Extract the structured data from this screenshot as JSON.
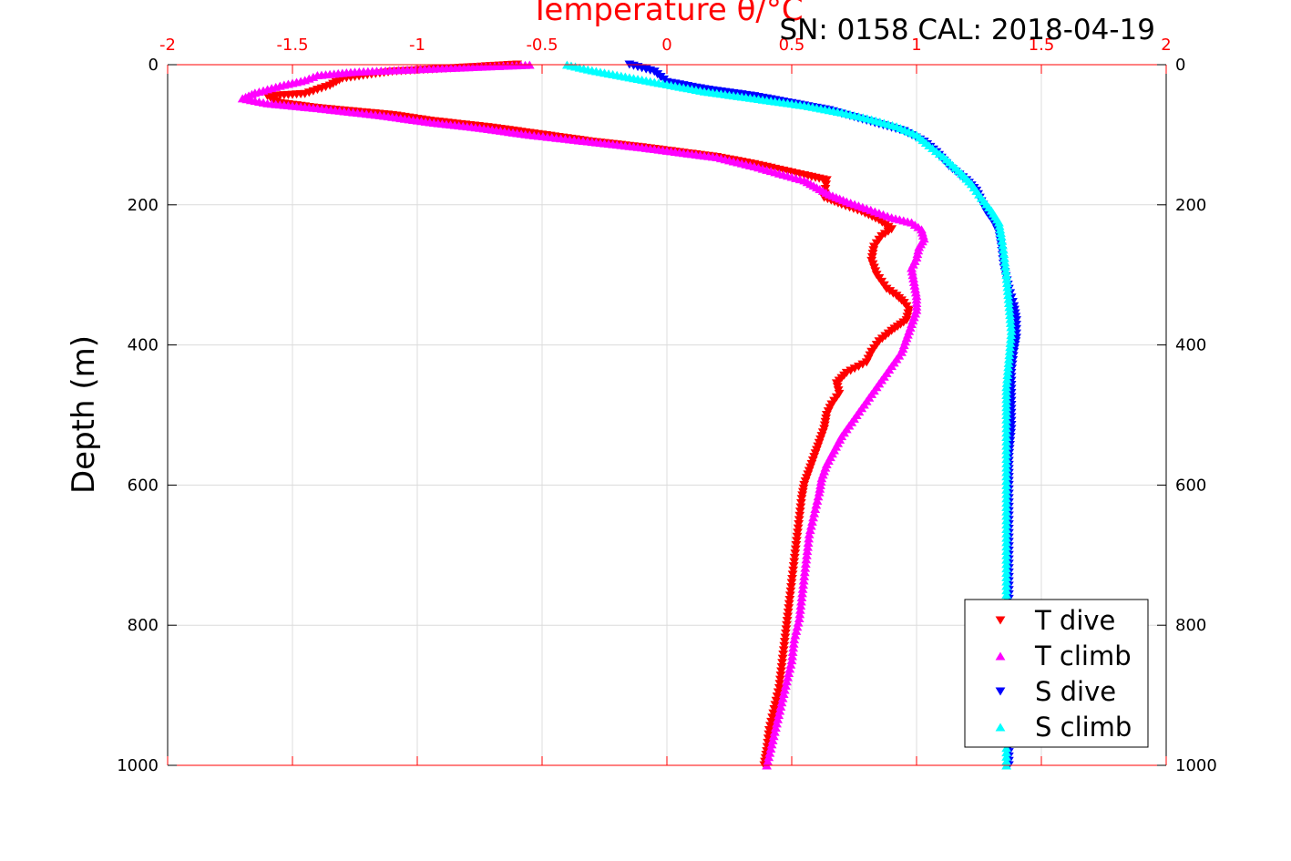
{
  "header": {
    "serial_cal": "SN: 0158  CAL: 2018-04-19"
  },
  "colors": {
    "t_axis": "#ff0000",
    "t_dive": "#ff0000",
    "t_climb": "#ff00ff",
    "s_dive": "#0000ff",
    "s_climb": "#00ffff"
  },
  "chart_data": {
    "type": "scatter",
    "title": "Temperature θ/°C",
    "xlabel": "Temperature θ/°C",
    "ylabel": "Depth (m)",
    "xlim": [
      -2,
      2
    ],
    "ylim": [
      0,
      1000
    ],
    "y_reversed": true,
    "grid": true,
    "xticks": [
      "-2",
      "-1.5",
      "-1",
      "-0.5",
      "0",
      "0.5",
      "1",
      "1.5",
      "2"
    ],
    "yticks": [
      "0",
      "200",
      "400",
      "600",
      "800",
      "1000"
    ],
    "legend_position": "bottom-right",
    "series": [
      {
        "name": "T dive",
        "marker": "triangle-down",
        "points": [
          [
            -0.6,
            0
          ],
          [
            -1.1,
            10
          ],
          [
            -1.3,
            20
          ],
          [
            -1.35,
            30
          ],
          [
            -1.45,
            42
          ],
          [
            -1.6,
            45
          ],
          [
            -1.55,
            55
          ],
          [
            -1.4,
            62
          ],
          [
            -1.1,
            72
          ],
          [
            -0.95,
            80
          ],
          [
            -0.7,
            90
          ],
          [
            -0.5,
            100
          ],
          [
            -0.3,
            110
          ],
          [
            -0.1,
            118
          ],
          [
            0.05,
            125
          ],
          [
            0.2,
            132
          ],
          [
            0.35,
            142
          ],
          [
            0.45,
            150
          ],
          [
            0.55,
            158
          ],
          [
            0.64,
            165
          ],
          [
            0.63,
            190
          ],
          [
            0.7,
            200
          ],
          [
            0.78,
            210
          ],
          [
            0.85,
            222
          ],
          [
            0.9,
            235
          ],
          [
            0.86,
            245
          ],
          [
            0.83,
            260
          ],
          [
            0.82,
            280
          ],
          [
            0.84,
            300
          ],
          [
            0.88,
            320
          ],
          [
            0.92,
            330
          ],
          [
            0.95,
            340
          ],
          [
            0.97,
            350
          ],
          [
            0.96,
            365
          ],
          [
            0.9,
            380
          ],
          [
            0.85,
            395
          ],
          [
            0.82,
            410
          ],
          [
            0.8,
            425
          ],
          [
            0.72,
            440
          ],
          [
            0.68,
            455
          ],
          [
            0.69,
            470
          ],
          [
            0.66,
            485
          ],
          [
            0.64,
            500
          ],
          [
            0.63,
            520
          ],
          [
            0.61,
            540
          ],
          [
            0.59,
            560
          ],
          [
            0.57,
            580
          ],
          [
            0.55,
            600
          ],
          [
            0.54,
            620
          ],
          [
            0.53,
            650
          ],
          [
            0.52,
            680
          ],
          [
            0.51,
            710
          ],
          [
            0.5,
            740
          ],
          [
            0.49,
            770
          ],
          [
            0.48,
            800
          ],
          [
            0.47,
            830
          ],
          [
            0.46,
            860
          ],
          [
            0.45,
            890
          ],
          [
            0.43,
            920
          ],
          [
            0.41,
            950
          ],
          [
            0.4,
            980
          ],
          [
            0.39,
            1000
          ]
        ]
      },
      {
        "name": "T climb",
        "marker": "triangle-up",
        "points": [
          [
            -0.55,
            0
          ],
          [
            -0.9,
            5
          ],
          [
            -1.25,
            10
          ],
          [
            -1.4,
            15
          ],
          [
            -1.45,
            22
          ],
          [
            -1.55,
            30
          ],
          [
            -1.65,
            40
          ],
          [
            -1.7,
            48
          ],
          [
            -1.6,
            55
          ],
          [
            -1.4,
            62
          ],
          [
            -1.15,
            72
          ],
          [
            -0.95,
            82
          ],
          [
            -0.75,
            90
          ],
          [
            -0.55,
            100
          ],
          [
            -0.3,
            110
          ],
          [
            -0.1,
            118
          ],
          [
            0.05,
            125
          ],
          [
            0.2,
            132
          ],
          [
            0.35,
            145
          ],
          [
            0.45,
            155
          ],
          [
            0.55,
            165
          ],
          [
            0.6,
            175
          ],
          [
            0.65,
            185
          ],
          [
            0.72,
            195
          ],
          [
            0.8,
            205
          ],
          [
            0.9,
            218
          ],
          [
            0.98,
            225
          ],
          [
            1.02,
            235
          ],
          [
            1.03,
            248
          ],
          [
            1.01,
            260
          ],
          [
            1.0,
            275
          ],
          [
            0.98,
            290
          ],
          [
            0.99,
            310
          ],
          [
            1.0,
            330
          ],
          [
            1.0,
            350
          ],
          [
            0.98,
            370
          ],
          [
            0.96,
            390
          ],
          [
            0.94,
            410
          ],
          [
            0.9,
            430
          ],
          [
            0.86,
            450
          ],
          [
            0.82,
            470
          ],
          [
            0.78,
            490
          ],
          [
            0.74,
            510
          ],
          [
            0.7,
            530
          ],
          [
            0.67,
            550
          ],
          [
            0.64,
            570
          ],
          [
            0.62,
            590
          ],
          [
            0.61,
            610
          ],
          [
            0.59,
            640
          ],
          [
            0.57,
            670
          ],
          [
            0.56,
            700
          ],
          [
            0.55,
            730
          ],
          [
            0.54,
            760
          ],
          [
            0.53,
            790
          ],
          [
            0.51,
            820
          ],
          [
            0.5,
            850
          ],
          [
            0.48,
            880
          ],
          [
            0.46,
            910
          ],
          [
            0.44,
            940
          ],
          [
            0.42,
            970
          ],
          [
            0.4,
            1000
          ]
        ]
      },
      {
        "name": "S dive",
        "marker": "triangle-down",
        "points": [
          [
            -0.15,
            0
          ],
          [
            -0.05,
            10
          ],
          [
            0.0,
            25
          ],
          [
            0.15,
            35
          ],
          [
            0.35,
            45
          ],
          [
            0.5,
            55
          ],
          [
            0.65,
            65
          ],
          [
            0.75,
            75
          ],
          [
            0.85,
            85
          ],
          [
            0.95,
            95
          ],
          [
            1.03,
            110
          ],
          [
            1.08,
            125
          ],
          [
            1.13,
            145
          ],
          [
            1.2,
            165
          ],
          [
            1.24,
            180
          ],
          [
            1.26,
            195
          ],
          [
            1.28,
            210
          ],
          [
            1.31,
            225
          ],
          [
            1.33,
            240
          ],
          [
            1.34,
            260
          ],
          [
            1.35,
            290
          ],
          [
            1.37,
            320
          ],
          [
            1.39,
            345
          ],
          [
            1.4,
            365
          ],
          [
            1.4,
            390
          ],
          [
            1.39,
            410
          ],
          [
            1.38,
            440
          ],
          [
            1.38,
            480
          ],
          [
            1.38,
            520
          ],
          [
            1.37,
            560
          ],
          [
            1.37,
            600
          ],
          [
            1.37,
            650
          ],
          [
            1.37,
            700
          ],
          [
            1.37,
            750
          ],
          [
            1.37,
            800
          ],
          [
            1.37,
            850
          ],
          [
            1.37,
            900
          ],
          [
            1.37,
            950
          ],
          [
            1.37,
            1000
          ]
        ]
      },
      {
        "name": "S climb",
        "marker": "triangle-up",
        "points": [
          [
            -0.4,
            0
          ],
          [
            -0.3,
            8
          ],
          [
            -0.15,
            18
          ],
          [
            0.0,
            28
          ],
          [
            0.15,
            38
          ],
          [
            0.35,
            48
          ],
          [
            0.55,
            58
          ],
          [
            0.7,
            68
          ],
          [
            0.82,
            78
          ],
          [
            0.92,
            88
          ],
          [
            1.0,
            100
          ],
          [
            1.05,
            115
          ],
          [
            1.12,
            135
          ],
          [
            1.18,
            155
          ],
          [
            1.22,
            170
          ],
          [
            1.26,
            190
          ],
          [
            1.3,
            208
          ],
          [
            1.33,
            225
          ],
          [
            1.34,
            245
          ],
          [
            1.35,
            270
          ],
          [
            1.36,
            300
          ],
          [
            1.37,
            340
          ],
          [
            1.38,
            380
          ],
          [
            1.37,
            420
          ],
          [
            1.36,
            460
          ],
          [
            1.36,
            500
          ],
          [
            1.36,
            550
          ],
          [
            1.36,
            600
          ],
          [
            1.36,
            650
          ],
          [
            1.36,
            700
          ],
          [
            1.36,
            750
          ],
          [
            1.36,
            800
          ],
          [
            1.36,
            850
          ],
          [
            1.36,
            900
          ],
          [
            1.36,
            950
          ],
          [
            1.36,
            1000
          ]
        ]
      }
    ]
  }
}
